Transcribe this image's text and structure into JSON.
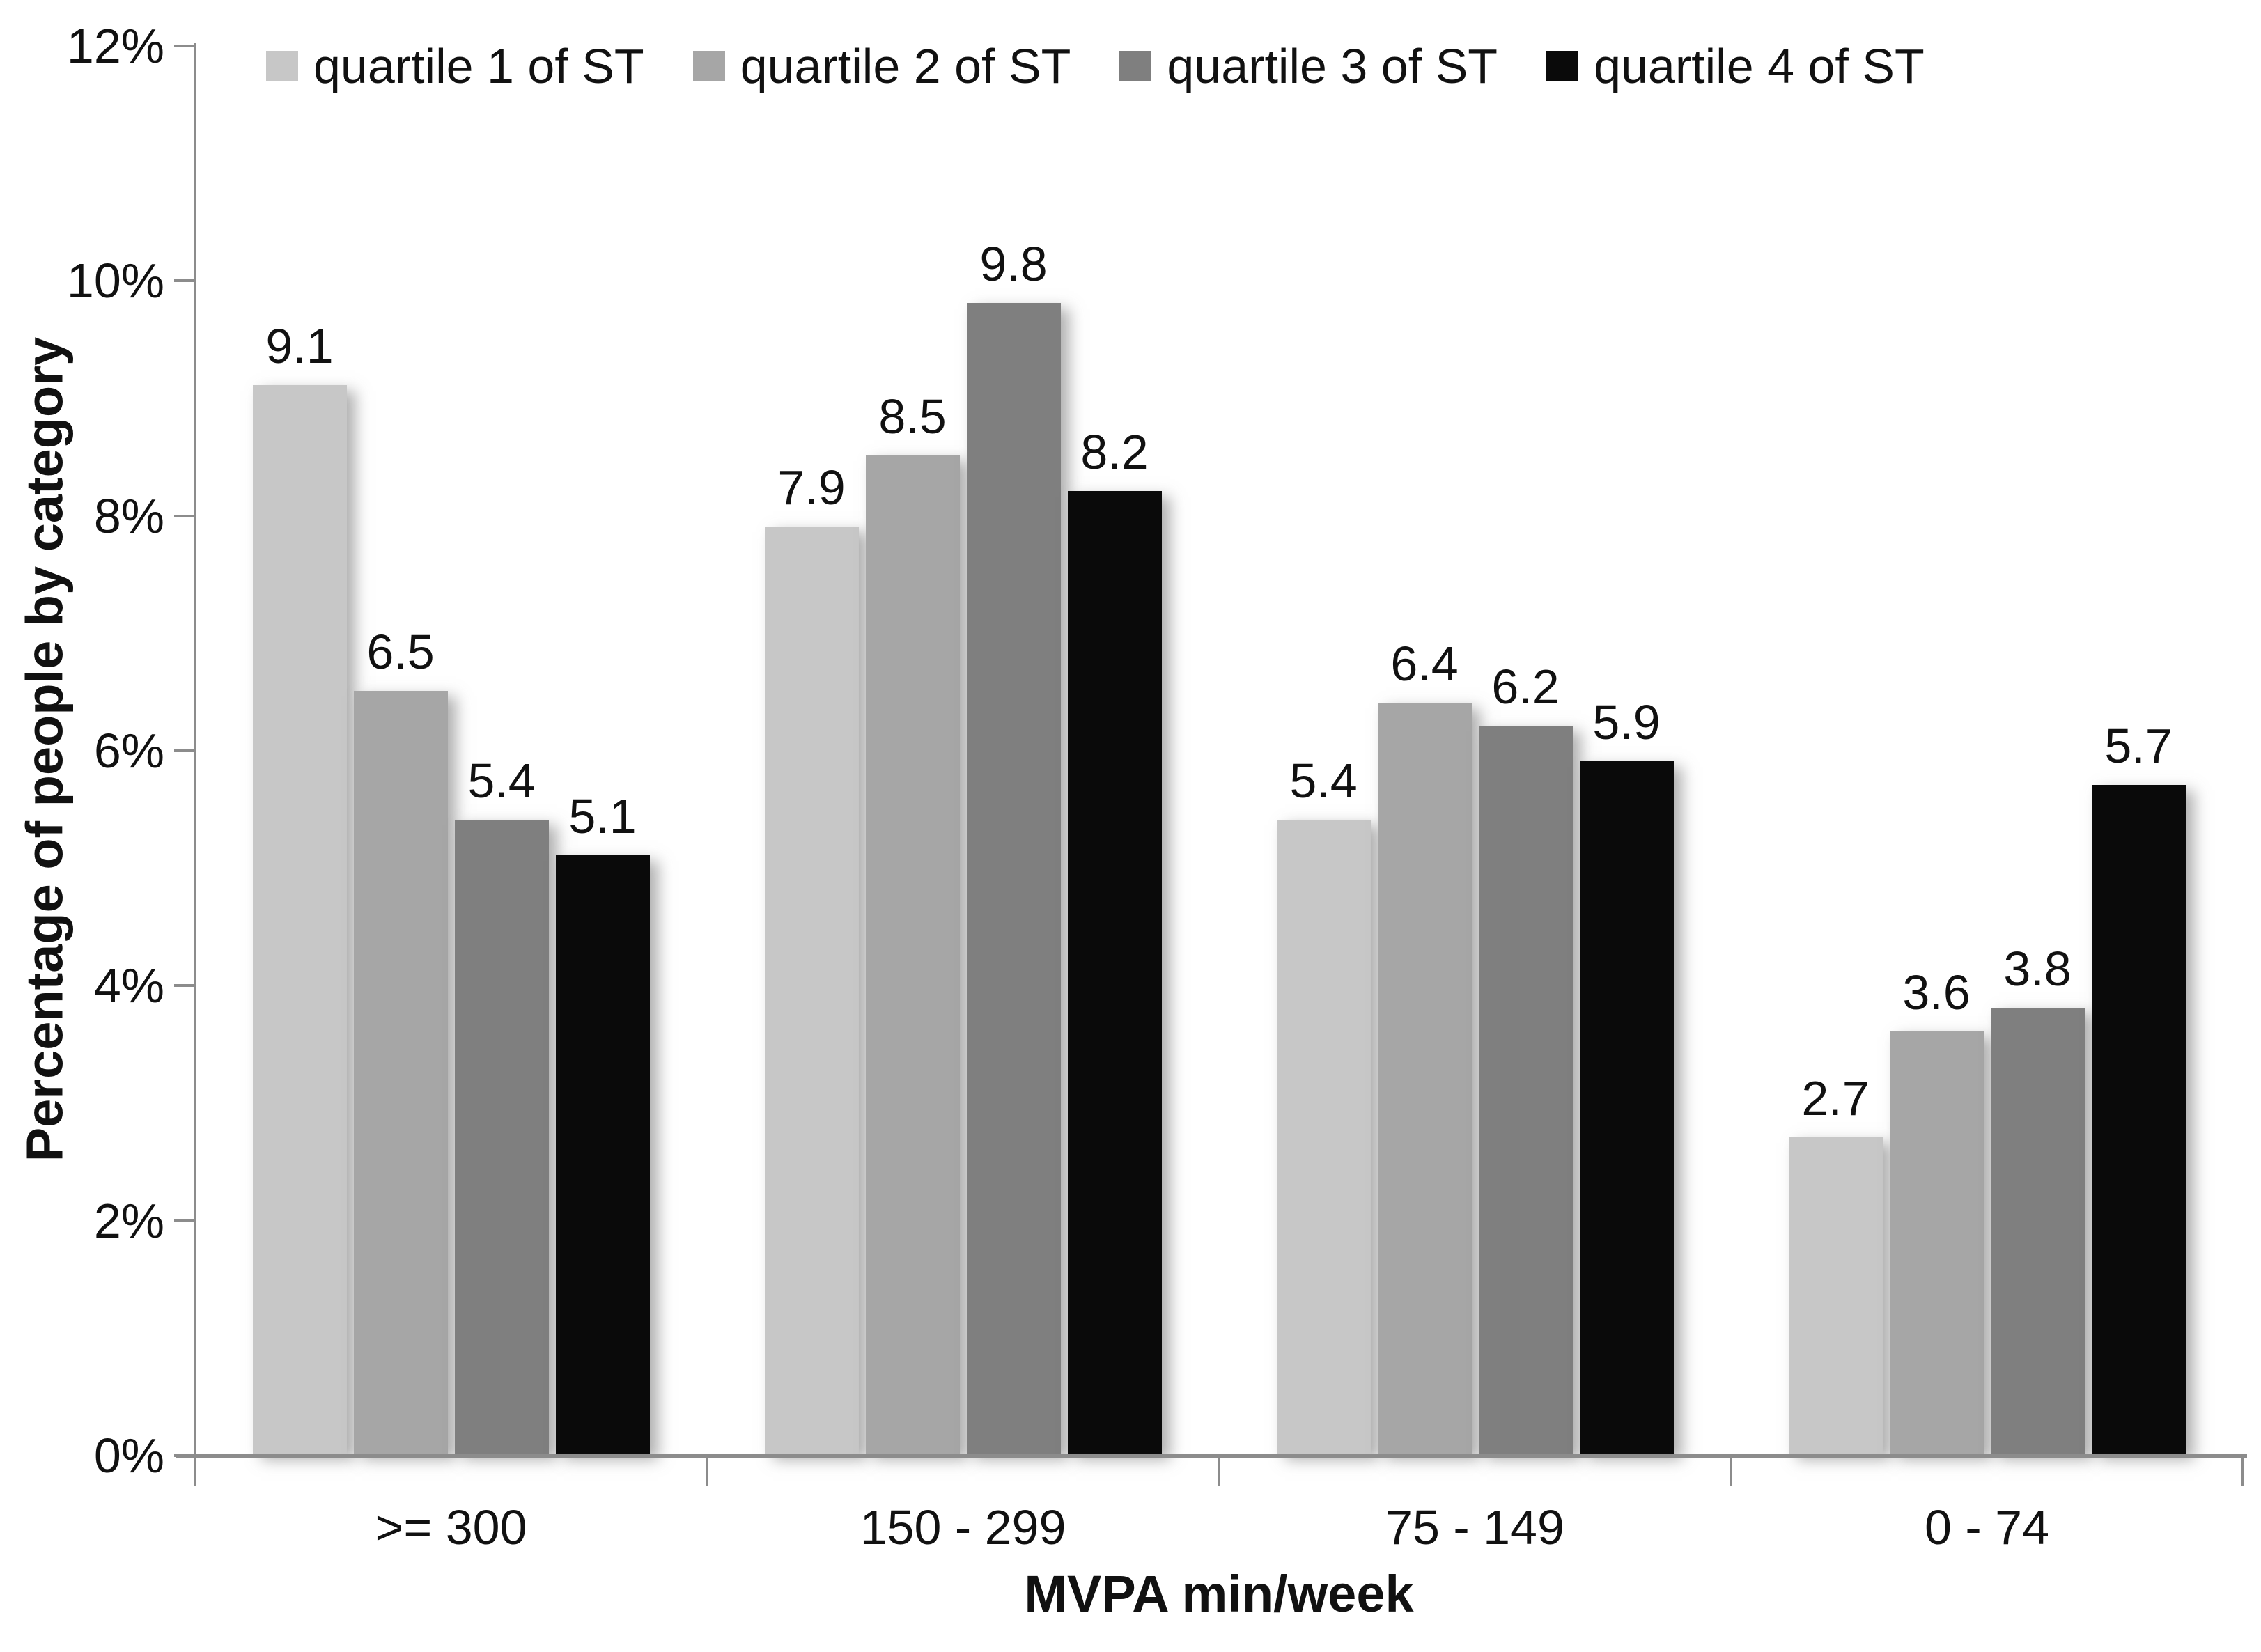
{
  "chart_data": {
    "type": "bar",
    "title": "",
    "categories": [
      ">= 300",
      "150 - 299",
      "75 - 149",
      "0 - 74"
    ],
    "series": [
      {
        "name": "quartile 1 of ST",
        "color": "#c7c7c7",
        "values": [
          9.1,
          7.9,
          5.4,
          2.7
        ]
      },
      {
        "name": "quartile 2 of ST",
        "color": "#a6a6a6",
        "values": [
          6.5,
          8.5,
          6.4,
          3.6
        ]
      },
      {
        "name": "quartile 3 of ST",
        "color": "#7f7f7f",
        "values": [
          5.4,
          9.8,
          6.2,
          3.8
        ]
      },
      {
        "name": "quartile 4 of ST",
        "color": "#0a0a0a",
        "values": [
          5.1,
          8.2,
          5.9,
          5.7
        ]
      }
    ],
    "xlabel": "MVPA min/week",
    "ylabel": "Percentage of people by category",
    "ylim": [
      0,
      12
    ],
    "ytick_step": 2,
    "ytick_suffix": "%",
    "value_label_decimals": 1,
    "grid": false,
    "legend_position": "top-inside",
    "axis_color": "#8c8c8c",
    "text_color": "#111111",
    "background_color": "#ffffff"
  }
}
